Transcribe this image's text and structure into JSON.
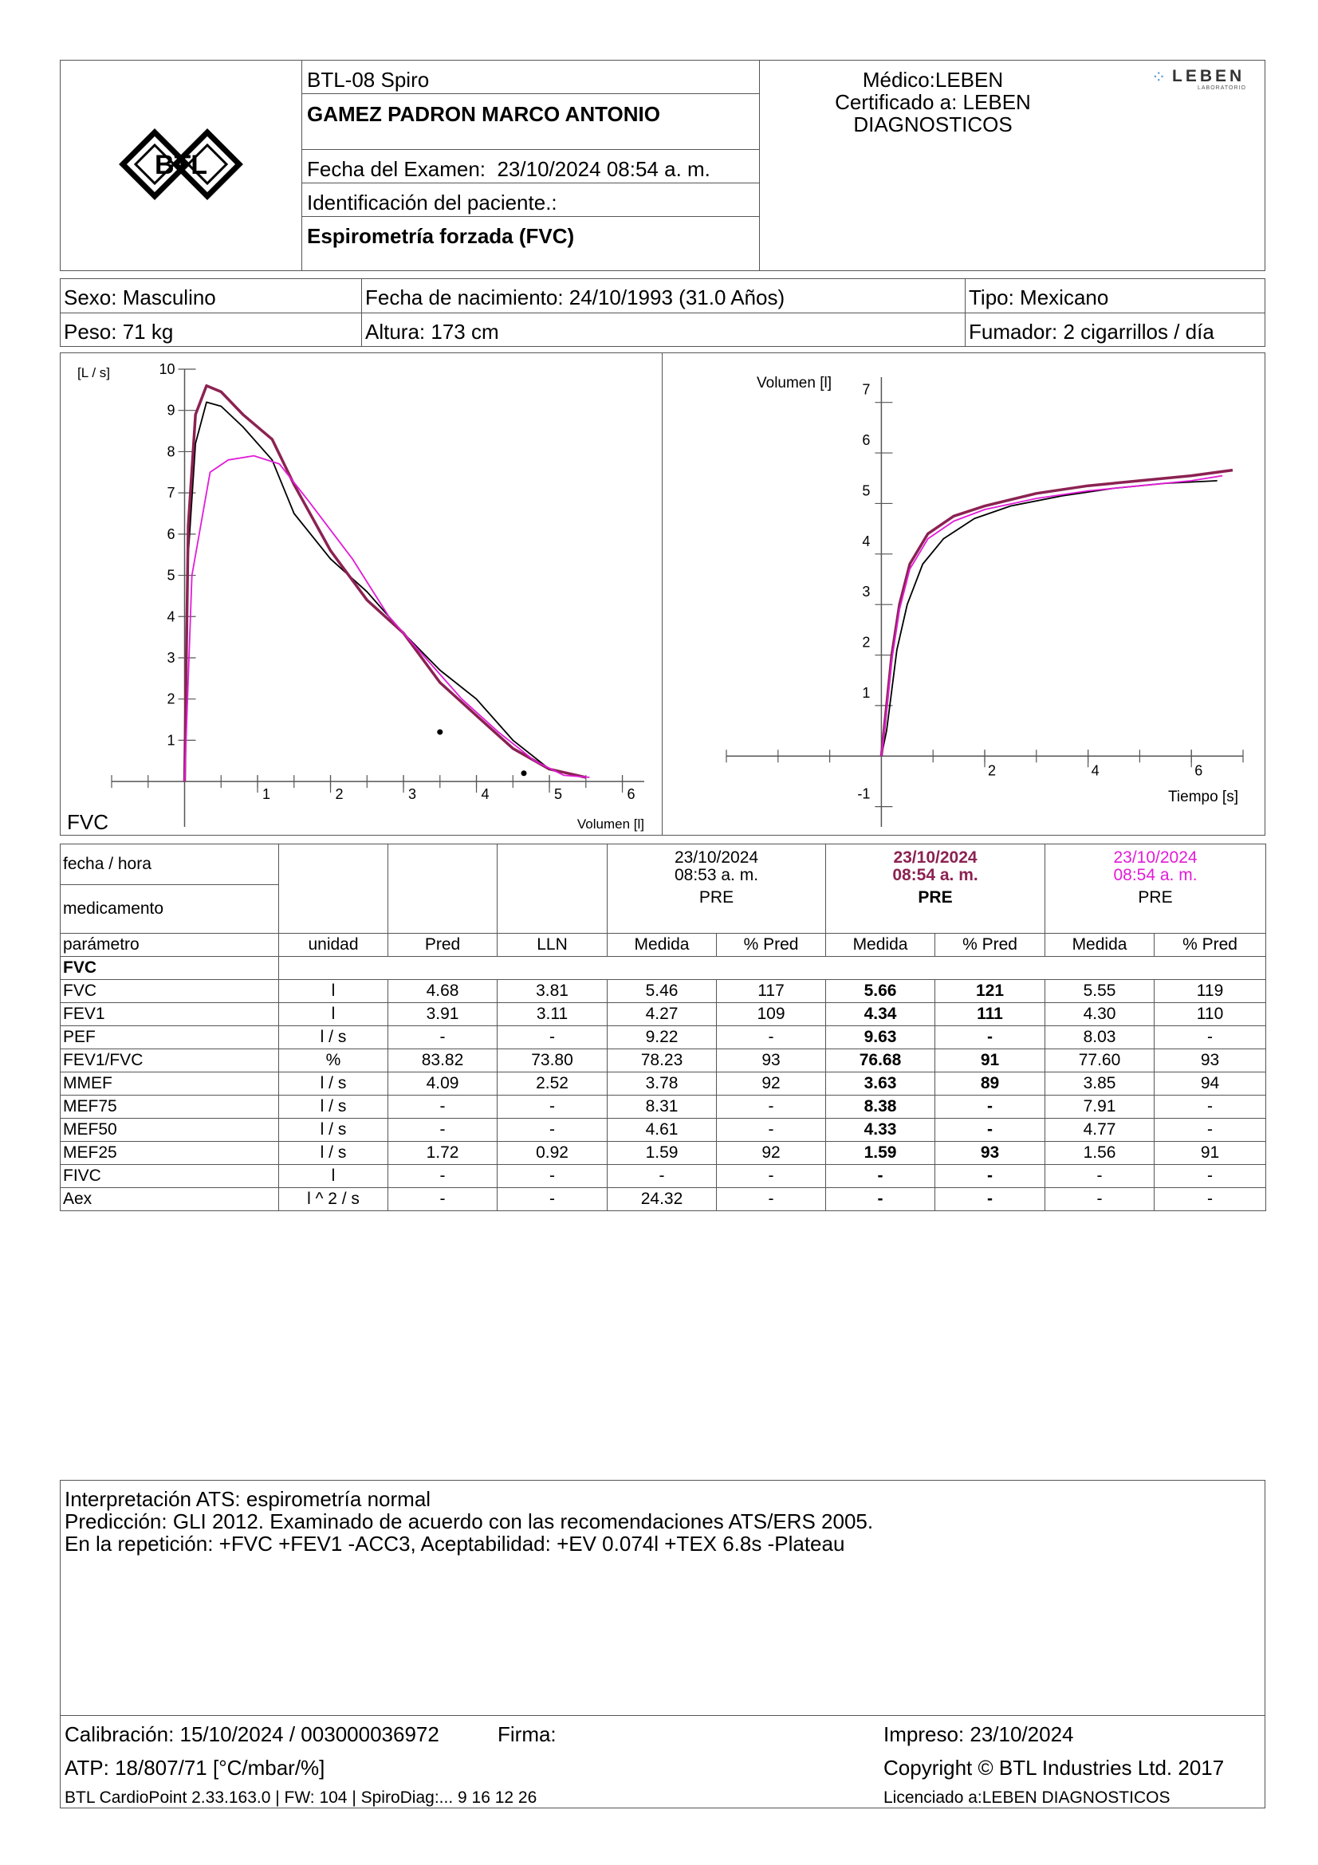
{
  "header": {
    "device": "BTL-08 Spiro",
    "patient_name": "GAMEZ PADRON MARCO ANTONIO",
    "exam_date_label": "Fecha del Examen:",
    "exam_date": "23/10/2024 08:54 a. m.",
    "patient_id_label": "Identificación del paciente.:",
    "test_name": "Espirometría forzada (FVC)",
    "doctor": "Médico:LEBEN",
    "certified_line1": "Certificado a: LEBEN",
    "certified_line2": "DIAGNOSTICOS",
    "logo_text": "BTL",
    "lab_logo_text": "LEBEN",
    "lab_logo_sub": "LABORATORIO"
  },
  "demographics": {
    "sex": "Sexo: Masculino",
    "birth": "Fecha de nacimiento: 24/10/1993 (31.0 Años)",
    "type": "Tipo: Mexicano",
    "weight": "Peso: 71 kg",
    "height": "Altura: 173 cm",
    "smoker": "Fumador: 2 cigarrillos / día"
  },
  "chart_data": [
    {
      "type": "line",
      "name": "flow-volume",
      "corner_label": "FVC",
      "xlabel": "Volumen [l]",
      "ylabel": "[L / s]",
      "xlim": [
        -1,
        6.3
      ],
      "ylim": [
        -1.1,
        10
      ],
      "xticks": [
        1,
        2,
        3,
        4,
        5,
        6
      ],
      "yticks": [
        1,
        2,
        3,
        4,
        5,
        6,
        7,
        8,
        9,
        10
      ],
      "series": [
        {
          "color": "#000000",
          "points": [
            [
              0,
              0
            ],
            [
              0.05,
              5.5
            ],
            [
              0.15,
              8.2
            ],
            [
              0.3,
              9.2
            ],
            [
              0.5,
              9.1
            ],
            [
              0.8,
              8.6
            ],
            [
              1.2,
              7.8
            ],
            [
              1.5,
              6.5
            ],
            [
              2,
              5.4
            ],
            [
              2.5,
              4.6
            ],
            [
              3,
              3.6
            ],
            [
              3.5,
              2.7
            ],
            [
              4,
              2.0
            ],
            [
              4.5,
              1.0
            ],
            [
              5.0,
              0.3
            ],
            [
              5.46,
              0.1
            ]
          ]
        },
        {
          "color": "#8b2252",
          "points": [
            [
              0,
              0
            ],
            [
              0.05,
              6.2
            ],
            [
              0.15,
              8.9
            ],
            [
              0.3,
              9.6
            ],
            [
              0.5,
              9.45
            ],
            [
              0.8,
              8.9
            ],
            [
              1.2,
              8.3
            ],
            [
              1.5,
              7.2
            ],
            [
              2,
              5.6
            ],
            [
              2.5,
              4.4
            ],
            [
              3,
              3.6
            ],
            [
              3.5,
              2.4
            ],
            [
              4,
              1.6
            ],
            [
              4.5,
              0.8
            ],
            [
              5.0,
              0.3
            ],
            [
              5.5,
              0.1
            ]
          ]
        },
        {
          "color": "#e21bd8",
          "points": [
            [
              0,
              0
            ],
            [
              0.1,
              5.0
            ],
            [
              0.35,
              7.5
            ],
            [
              0.6,
              7.8
            ],
            [
              0.95,
              7.9
            ],
            [
              1.3,
              7.7
            ],
            [
              1.7,
              6.8
            ],
            [
              2.3,
              5.4
            ],
            [
              2.8,
              4.0
            ],
            [
              3.3,
              3.0
            ],
            [
              3.8,
              2.0
            ],
            [
              4.3,
              1.2
            ],
            [
              4.8,
              0.5
            ],
            [
              5.2,
              0.15
            ],
            [
              5.55,
              0.1
            ]
          ]
        }
      ],
      "markers": [
        [
          3.5,
          1.2
        ],
        [
          4.65,
          0.2
        ]
      ]
    },
    {
      "type": "line",
      "name": "volume-time",
      "xlabel": "Tiempo [s]",
      "ylabel": "Volumen [l]",
      "xlim": [
        -3,
        7
      ],
      "ylim": [
        -1.4,
        7.5
      ],
      "xticks": [
        2,
        4,
        6
      ],
      "yticks": [
        -1,
        1,
        2,
        3,
        4,
        5,
        6,
        7
      ],
      "series": [
        {
          "color": "#000000",
          "points": [
            [
              0,
              0
            ],
            [
              0.1,
              0.5
            ],
            [
              0.2,
              1.3
            ],
            [
              0.3,
              2.1
            ],
            [
              0.5,
              3.0
            ],
            [
              0.8,
              3.8
            ],
            [
              1.2,
              4.3
            ],
            [
              1.8,
              4.7
            ],
            [
              2.5,
              4.95
            ],
            [
              3.5,
              5.15
            ],
            [
              4.5,
              5.3
            ],
            [
              5.5,
              5.4
            ],
            [
              6.5,
              5.45
            ]
          ]
        },
        {
          "color": "#8b2252",
          "points": [
            [
              0,
              0
            ],
            [
              0.1,
              1.0
            ],
            [
              0.2,
              2.0
            ],
            [
              0.35,
              3.0
            ],
            [
              0.55,
              3.8
            ],
            [
              0.9,
              4.4
            ],
            [
              1.4,
              4.75
            ],
            [
              2.0,
              4.95
            ],
            [
              3.0,
              5.2
            ],
            [
              4.0,
              5.35
            ],
            [
              5.0,
              5.45
            ],
            [
              6.0,
              5.55
            ],
            [
              6.8,
              5.66
            ]
          ]
        },
        {
          "color": "#e21bd8",
          "points": [
            [
              0,
              0
            ],
            [
              0.1,
              0.9
            ],
            [
              0.2,
              1.9
            ],
            [
              0.35,
              2.9
            ],
            [
              0.55,
              3.7
            ],
            [
              0.9,
              4.3
            ],
            [
              1.4,
              4.65
            ],
            [
              2.0,
              4.88
            ],
            [
              3.0,
              5.1
            ],
            [
              4.0,
              5.25
            ],
            [
              5.0,
              5.35
            ],
            [
              6.0,
              5.45
            ],
            [
              6.6,
              5.55
            ]
          ]
        }
      ]
    }
  ],
  "results": {
    "row_labels": [
      "fecha / hora",
      "medicamento"
    ],
    "trials": [
      {
        "date": "23/10/2024",
        "time": "08:53 a. m.",
        "med": "PRE"
      },
      {
        "date": "23/10/2024",
        "time": "08:54 a. m.",
        "med": "PRE"
      },
      {
        "date": "23/10/2024",
        "time": "08:54 a. m.",
        "med": "PRE"
      }
    ],
    "columns": [
      "parámetro",
      "unidad",
      "Pred",
      "LLN",
      "Medida",
      "% Pred",
      "Medida",
      "% Pred",
      "Medida",
      "% Pred"
    ],
    "section": "FVC",
    "rows": [
      [
        "FVC",
        "l",
        "4.68",
        "3.81",
        "5.46",
        "117",
        "5.66",
        "121",
        "5.55",
        "119"
      ],
      [
        "FEV1",
        "l",
        "3.91",
        "3.11",
        "4.27",
        "109",
        "4.34",
        "111",
        "4.30",
        "110"
      ],
      [
        "PEF",
        "l / s",
        "-",
        "-",
        "9.22",
        "-",
        "9.63",
        "-",
        "8.03",
        "-"
      ],
      [
        "FEV1/FVC",
        "%",
        "83.82",
        "73.80",
        "78.23",
        "93",
        "76.68",
        "91",
        "77.60",
        "93"
      ],
      [
        "MMEF",
        "l / s",
        "4.09",
        "2.52",
        "3.78",
        "92",
        "3.63",
        "89",
        "3.85",
        "94"
      ],
      [
        "MEF75",
        "l / s",
        "-",
        "-",
        "8.31",
        "-",
        "8.38",
        "-",
        "7.91",
        "-"
      ],
      [
        "MEF50",
        "l / s",
        "-",
        "-",
        "4.61",
        "-",
        "4.33",
        "-",
        "4.77",
        "-"
      ],
      [
        "MEF25",
        "l / s",
        "1.72",
        "0.92",
        "1.59",
        "92",
        "1.59",
        "93",
        "1.56",
        "91"
      ],
      [
        "FIVC",
        "l",
        "-",
        "-",
        "-",
        "-",
        "-",
        "-",
        "-",
        "-"
      ],
      [
        "Aex",
        "l ^ 2 / s",
        "-",
        "-",
        "24.32",
        "-",
        "-",
        "-",
        "-",
        "-"
      ]
    ]
  },
  "interpretation": {
    "line1": "Interpretación ATS: espirometría normal",
    "line2": "Predicción: GLI 2012. Examinado de acuerdo con las recomendaciones ATS/ERS 2005.",
    "line3": "En la repetición: +FVC +FEV1 -ACC3, Aceptabilidad: +EV 0.074l +TEX 6.8s -Plateau"
  },
  "footer": {
    "calibration": "Calibración: 15/10/2024 / 003000036972",
    "signature": "Firma:",
    "printed": "Impreso: 23/10/2024",
    "atp": "ATP: 18/807/71 [°C/mbar/%]",
    "copyright": "Copyright © BTL Industries Ltd. 2017",
    "software": "BTL CardioPoint 2.33.163.0 | FW: 104 | SpiroDiag:... 9 16 12 26",
    "licensed": "Licenciado a:LEBEN DIAGNOSTICOS"
  }
}
